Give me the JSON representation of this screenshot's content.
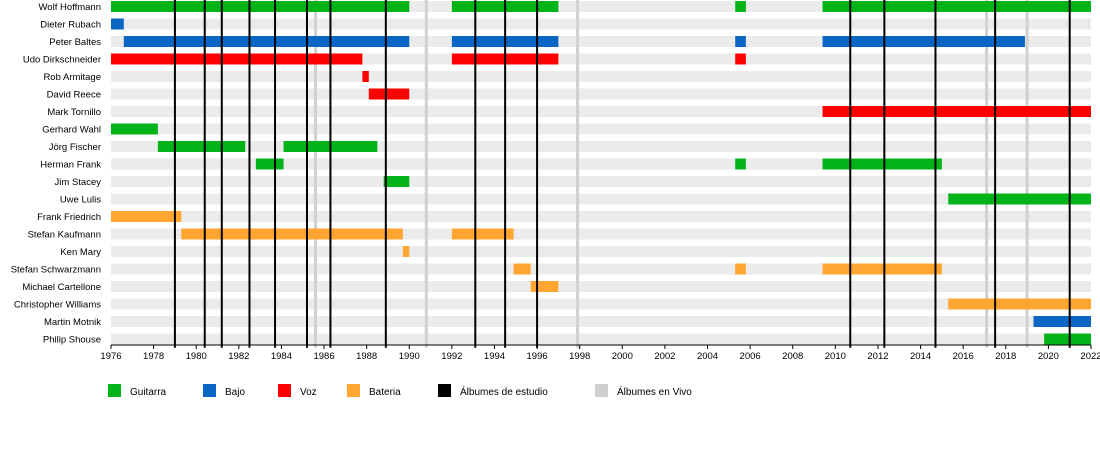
{
  "chart_data": {
    "type": "timeline",
    "title": "",
    "xlabel": "",
    "ylabel": "",
    "xlim": [
      1976,
      2022
    ],
    "x_ticks": [
      "1976",
      "1978",
      "1980",
      "1982",
      "1984",
      "1986",
      "1988",
      "1990",
      "1992",
      "1994",
      "1996",
      "1998",
      "2000",
      "2002",
      "2004",
      "2006",
      "2008",
      "2010",
      "2012",
      "2014",
      "2016",
      "2018",
      "2020",
      "2022"
    ],
    "members": [
      "Wolf Hoffmann",
      "Dieter Rubach",
      "Peter Baltes",
      "Udo Dirkschneider",
      "Rob Armitage",
      "David Reece",
      "Mark Tornillo",
      "Gerhard Wahl",
      "Jörg Fischer",
      "Herman Frank",
      "Jim Stacey",
      "Uwe Lulis",
      "Frank Friedrich",
      "Stefan Kaufmann",
      "Ken Mary",
      "Stefan Schwarzmann",
      "Michael Cartellone",
      "Christopher Williams",
      "Martin Motnik",
      "Philip Shouse"
    ],
    "roles": {
      "guitar": {
        "label": "Guitarra",
        "color": "#00b318"
      },
      "bass": {
        "label": "Bajo",
        "color": "#0a66c2"
      },
      "vocals": {
        "label": "Voz",
        "color": "#ff0000"
      },
      "drums": {
        "label": "Bateria",
        "color": "#ffa530"
      }
    },
    "tenures": [
      {
        "member": "Wolf Hoffmann",
        "role": "guitar",
        "start": 1976.0,
        "end": 1990.0
      },
      {
        "member": "Wolf Hoffmann",
        "role": "guitar",
        "start": 1992.0,
        "end": 1997.0
      },
      {
        "member": "Wolf Hoffmann",
        "role": "guitar",
        "start": 2005.3,
        "end": 2005.8
      },
      {
        "member": "Wolf Hoffmann",
        "role": "guitar",
        "start": 2009.4,
        "end": 2022.0
      },
      {
        "member": "Dieter Rubach",
        "role": "bass",
        "start": 1976.0,
        "end": 1976.6
      },
      {
        "member": "Peter Baltes",
        "role": "bass",
        "start": 1976.6,
        "end": 1990.0
      },
      {
        "member": "Peter Baltes",
        "role": "bass",
        "start": 1992.0,
        "end": 1997.0
      },
      {
        "member": "Peter Baltes",
        "role": "bass",
        "start": 2005.3,
        "end": 2005.8
      },
      {
        "member": "Peter Baltes",
        "role": "bass",
        "start": 2009.4,
        "end": 2018.9
      },
      {
        "member": "Udo Dirkschneider",
        "role": "vocals",
        "start": 1976.0,
        "end": 1987.8
      },
      {
        "member": "Udo Dirkschneider",
        "role": "vocals",
        "start": 1992.0,
        "end": 1997.0
      },
      {
        "member": "Udo Dirkschneider",
        "role": "vocals",
        "start": 2005.3,
        "end": 2005.8
      },
      {
        "member": "Rob Armitage",
        "role": "vocals",
        "start": 1987.8,
        "end": 1988.1
      },
      {
        "member": "David Reece",
        "role": "vocals",
        "start": 1988.1,
        "end": 1990.0
      },
      {
        "member": "Mark Tornillo",
        "role": "vocals",
        "start": 2009.4,
        "end": 2022.0
      },
      {
        "member": "Gerhard Wahl",
        "role": "guitar",
        "start": 1976.0,
        "end": 1978.2
      },
      {
        "member": "Jörg Fischer",
        "role": "guitar",
        "start": 1978.2,
        "end": 1982.3
      },
      {
        "member": "Jörg Fischer",
        "role": "guitar",
        "start": 1984.1,
        "end": 1988.5
      },
      {
        "member": "Herman Frank",
        "role": "guitar",
        "start": 1982.8,
        "end": 1984.1
      },
      {
        "member": "Herman Frank",
        "role": "guitar",
        "start": 2005.3,
        "end": 2005.8
      },
      {
        "member": "Herman Frank",
        "role": "guitar",
        "start": 2009.4,
        "end": 2015.0
      },
      {
        "member": "Jim Stacey",
        "role": "guitar",
        "start": 1988.8,
        "end": 1990.0
      },
      {
        "member": "Uwe Lulis",
        "role": "guitar",
        "start": 2015.3,
        "end": 2022.0
      },
      {
        "member": "Frank Friedrich",
        "role": "drums",
        "start": 1976.0,
        "end": 1979.3
      },
      {
        "member": "Stefan Kaufmann",
        "role": "drums",
        "start": 1979.3,
        "end": 1989.7
      },
      {
        "member": "Stefan Kaufmann",
        "role": "drums",
        "start": 1992.0,
        "end": 1994.9
      },
      {
        "member": "Ken Mary",
        "role": "drums",
        "start": 1989.7,
        "end": 1990.0
      },
      {
        "member": "Stefan Schwarzmann",
        "role": "drums",
        "start": 1994.9,
        "end": 1995.7
      },
      {
        "member": "Stefan Schwarzmann",
        "role": "drums",
        "start": 2005.3,
        "end": 2005.8
      },
      {
        "member": "Stefan Schwarzmann",
        "role": "drums",
        "start": 2009.4,
        "end": 2015.0
      },
      {
        "member": "Michael Cartellone",
        "role": "drums",
        "start": 1995.7,
        "end": 1997.0
      },
      {
        "member": "Christopher Williams",
        "role": "drums",
        "start": 2015.3,
        "end": 2022.0
      },
      {
        "member": "Martin Motnik",
        "role": "bass",
        "start": 2019.3,
        "end": 2022.0
      },
      {
        "member": "Philip Shouse",
        "role": "guitar",
        "start": 2019.8,
        "end": 2022.0
      }
    ],
    "studio_albums": [
      1979.0,
      1980.4,
      1981.2,
      1982.5,
      1983.7,
      1985.2,
      1986.3,
      1988.9,
      1993.1,
      1994.5,
      1996.0,
      2010.7,
      2012.3,
      2014.7,
      2017.5,
      2021.0
    ],
    "live_albums": [
      1985.6,
      1990.8,
      1997.9,
      2017.1,
      2019.0
    ],
    "legend": [
      {
        "label": "Guitarra",
        "color": "#00b318",
        "kind": "bar"
      },
      {
        "label": "Bajo",
        "color": "#0a66c2",
        "kind": "bar"
      },
      {
        "label": "Voz",
        "color": "#ff0000",
        "kind": "bar"
      },
      {
        "label": "Bateria",
        "color": "#ffa530",
        "kind": "bar"
      },
      {
        "label": "Álbumes de estudio",
        "color": "#000000",
        "kind": "line"
      },
      {
        "label": "Álbumes en Vivo",
        "color": "#cfcfcf",
        "kind": "line"
      }
    ],
    "legend_position": "bottom",
    "grid": true
  }
}
